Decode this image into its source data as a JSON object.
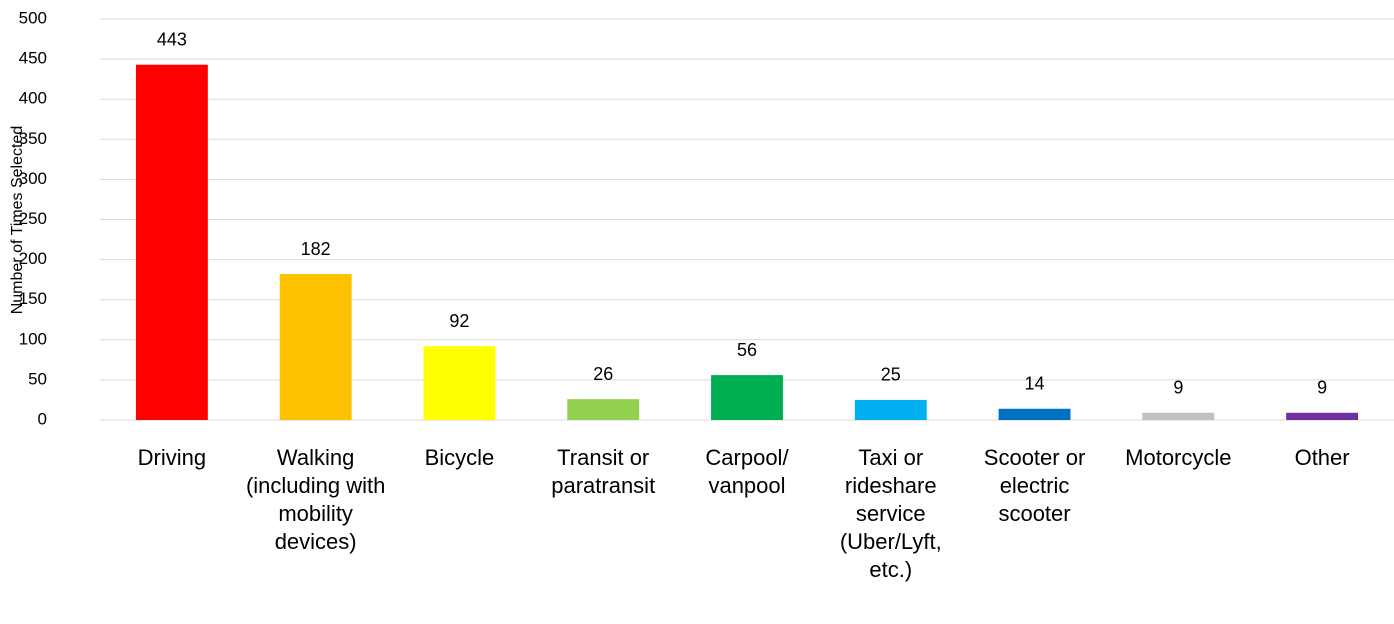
{
  "chart_data": {
    "type": "bar",
    "y_label": "Number of Times Selected",
    "categories": [
      "Driving",
      "Walking (including with mobility devices)",
      "Bicycle",
      "Transit or paratransit",
      "Carpool/ vanpool",
      "Taxi or rideshare service (Uber/Lyft, etc.)",
      "Scooter or electric scooter",
      "Motorcycle",
      "Other"
    ],
    "values": [
      443,
      182,
      92,
      26,
      56,
      25,
      14,
      9,
      9
    ],
    "colors": [
      "#ff0000",
      "#ffc000",
      "#ffff00",
      "#92d050",
      "#00b050",
      "#00b0f0",
      "#0070c0",
      "#bfbfbf",
      "#7030a0"
    ],
    "ylim": [
      0,
      500
    ],
    "yticks": [
      0,
      50,
      100,
      150,
      200,
      250,
      300,
      350,
      400,
      450,
      500
    ],
    "grid": true
  }
}
